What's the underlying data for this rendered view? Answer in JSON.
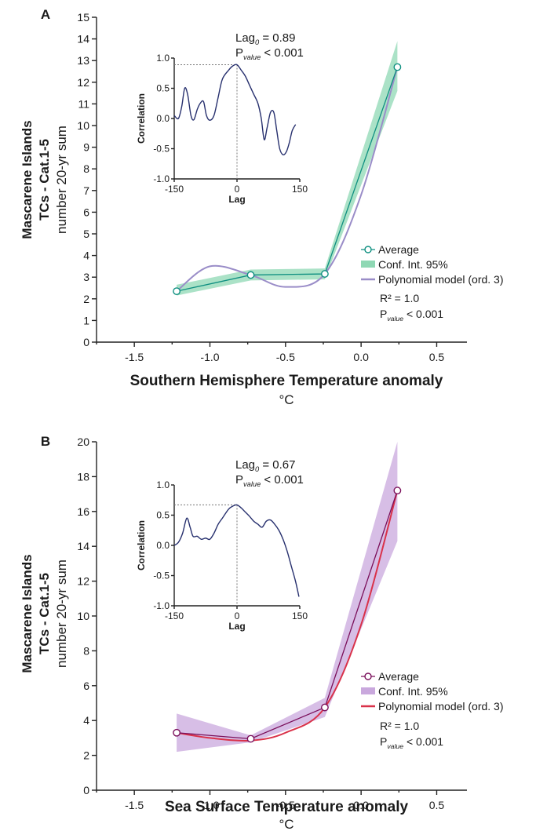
{
  "chart_data": [
    {
      "type": "line",
      "panel_label": "A",
      "ylabel": [
        "Mascarene Islands",
        "TCs - Cat.1-5",
        "number 20-yr sum"
      ],
      "xlabel": [
        "Southern Hemisphere Temperature anomaly",
        "°C"
      ],
      "xlim": [
        -1.75,
        0.7
      ],
      "ylim": [
        0,
        15
      ],
      "x_ticks": [
        -1.5,
        -1.0,
        -0.5,
        0.0,
        0.5
      ],
      "x_tick_labels": [
        "-1.5",
        "-1.0",
        "-0.5",
        "0.0",
        "0.5"
      ],
      "y_ticks": [
        0,
        1,
        2,
        3,
        4,
        5,
        6,
        7,
        8,
        9,
        10,
        11,
        12,
        13,
        14,
        15
      ],
      "y_tick_labels": [
        "0",
        "1",
        "2",
        "3",
        "4",
        "5",
        "6",
        "7",
        "8",
        "9",
        "10",
        "11",
        "12",
        "13",
        "14",
        "15"
      ],
      "colors": {
        "average": "#0e8f80",
        "ci": "#8fd8b4",
        "model": "#9a8dc8"
      },
      "series": [
        {
          "name": "Average",
          "x": [
            -1.22,
            -0.73,
            -0.24,
            0.24
          ],
          "y": [
            2.35,
            3.1,
            3.15,
            12.7
          ]
        },
        {
          "name": "Conf. Int. 95%",
          "x": [
            -1.22,
            -0.73,
            -0.24,
            0.24
          ],
          "lower": [
            2.15,
            2.85,
            2.9,
            11.6
          ],
          "upper": [
            2.65,
            3.35,
            3.4,
            13.9
          ]
        },
        {
          "name": "Polynomial model (ord. 3)",
          "x": [
            -1.22,
            -1.0,
            -0.73,
            -0.5,
            -0.24,
            0.0,
            0.24
          ],
          "y": [
            2.35,
            3.5,
            3.1,
            2.55,
            3.15,
            6.8,
            12.7
          ]
        }
      ],
      "legend": [
        "Average",
        "Conf. Int. 95%",
        "Polynomial model (ord. 3)"
      ],
      "stats": {
        "r2": "R² = 1.0",
        "p_prefix": "P",
        "p_sub": "value",
        "p_suffix": " < 0.001"
      },
      "inset": {
        "ylabel": "Correlation",
        "xlabel": "Lag",
        "xlim": [
          -150,
          150
        ],
        "ylim": [
          -1.0,
          1.0
        ],
        "x_tick_labels": [
          "-150",
          "0",
          "150"
        ],
        "y_ticks": [
          -1.0,
          -0.5,
          0.0,
          0.5,
          1.0
        ],
        "y_tick_labels": [
          "-1.0",
          "-0.5",
          "0.0",
          "0.5",
          "1.0"
        ],
        "lag_prefix": "Lag",
        "lag_sub": "0",
        "lag_suffix": " = 0.89",
        "peak": 0.89,
        "p_prefix": "P",
        "p_sub": "value",
        "p_suffix": " < 0.001",
        "curve_color": "#27306e",
        "lag": [
          -150,
          -140,
          -132,
          -125,
          -118,
          -110,
          -103,
          -95,
          -88,
          -80,
          -73,
          -65,
          -55,
          -45,
          -35,
          -20,
          -10,
          0,
          10,
          20,
          30,
          40,
          50,
          58,
          65,
          72,
          80,
          88,
          95,
          102,
          110,
          118,
          125,
          132,
          140
        ],
        "corr": [
          0.05,
          0.0,
          0.2,
          0.5,
          0.4,
          0.05,
          -0.02,
          0.15,
          0.25,
          0.28,
          0.05,
          -0.03,
          0.05,
          0.35,
          0.65,
          0.8,
          0.87,
          0.89,
          0.8,
          0.7,
          0.55,
          0.4,
          0.25,
          0.0,
          -0.35,
          -0.15,
          0.1,
          0.1,
          -0.2,
          -0.5,
          -0.6,
          -0.55,
          -0.4,
          -0.2,
          -0.1
        ]
      }
    },
    {
      "type": "line",
      "panel_label": "B",
      "ylabel": [
        "Mascarene Islands",
        "TCs - Cat.1-5",
        "number 20-yr sum"
      ],
      "xlabel": [
        "Sea Surface Temperature anomaly",
        "°C"
      ],
      "xlim": [
        -1.75,
        0.7
      ],
      "ylim": [
        0,
        20
      ],
      "x_ticks": [
        -1.5,
        -1.0,
        -0.5,
        0.0,
        0.5
      ],
      "x_tick_labels": [
        "-1.5",
        "-1.0",
        "-0.5",
        "0.0",
        "0.5"
      ],
      "y_ticks": [
        0,
        2,
        4,
        6,
        8,
        10,
        12,
        14,
        16,
        18,
        20
      ],
      "y_tick_labels": [
        "0",
        "2",
        "4",
        "6",
        "8",
        "10",
        "12",
        "14",
        "16",
        "18",
        "20"
      ],
      "colors": {
        "average": "#7a0f5a",
        "ci": "#c9a8dd",
        "model": "#d9324a"
      },
      "series": [
        {
          "name": "Average",
          "x": [
            -1.22,
            -0.73,
            -0.24,
            0.24
          ],
          "y": [
            3.3,
            2.95,
            4.75,
            17.2
          ]
        },
        {
          "name": "Conf. Int. 95%",
          "x": [
            -1.22,
            -0.73,
            -0.24,
            0.24
          ],
          "lower": [
            2.2,
            2.75,
            4.2,
            14.3
          ],
          "upper": [
            4.4,
            3.15,
            5.3,
            20.0
          ]
        },
        {
          "name": "Polynomial model (ord. 3)",
          "x": [
            -1.22,
            -1.0,
            -0.73,
            -0.5,
            -0.24,
            0.0,
            0.24
          ],
          "y": [
            3.3,
            3.0,
            2.85,
            3.3,
            4.75,
            9.5,
            17.2
          ]
        }
      ],
      "legend": [
        "Average",
        "Conf. Int. 95%",
        "Polynomial model (ord. 3)"
      ],
      "stats": {
        "r2": "R² = 1.0",
        "p_prefix": "P",
        "p_sub": "value",
        "p_suffix": " < 0.001"
      },
      "inset": {
        "ylabel": "Correlation",
        "xlabel": "Lag",
        "xlim": [
          -150,
          150
        ],
        "ylim": [
          -1.0,
          1.0
        ],
        "x_tick_labels": [
          "-150",
          "0",
          "150"
        ],
        "y_ticks": [
          -1.0,
          -0.5,
          0.0,
          0.5,
          1.0
        ],
        "y_tick_labels": [
          "-1.0",
          "-0.5",
          "0.0",
          "0.5",
          "1.0"
        ],
        "lag_prefix": "Lag",
        "lag_sub": "0",
        "lag_suffix": " = 0.67",
        "peak": 0.67,
        "p_prefix": "P",
        "p_sub": "value",
        "p_suffix": " < 0.001",
        "curve_color": "#27306e",
        "lag": [
          -150,
          -140,
          -130,
          -120,
          -112,
          -105,
          -95,
          -85,
          -75,
          -65,
          -55,
          -45,
          -35,
          -20,
          -10,
          0,
          10,
          20,
          30,
          40,
          50,
          60,
          70,
          80,
          90,
          100,
          110,
          120,
          130,
          140,
          148
        ],
        "corr": [
          0.0,
          0.05,
          0.2,
          0.45,
          0.3,
          0.15,
          0.15,
          0.1,
          0.12,
          0.1,
          0.2,
          0.35,
          0.45,
          0.6,
          0.65,
          0.67,
          0.62,
          0.55,
          0.48,
          0.4,
          0.35,
          0.3,
          0.4,
          0.42,
          0.35,
          0.25,
          0.1,
          -0.1,
          -0.35,
          -0.6,
          -0.85
        ]
      }
    }
  ]
}
